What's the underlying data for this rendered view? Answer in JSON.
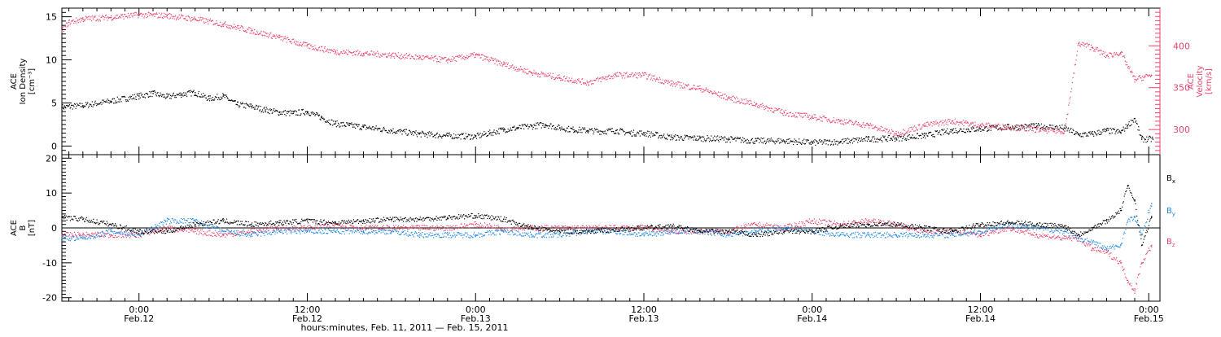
{
  "colors": {
    "black": "#000000",
    "pink": "#e8436a",
    "blue": "#1e88e5",
    "axis": "#000000"
  },
  "footer": {
    "xlabel": "hours:minutes, Feb. 11, 2011 — Feb. 15, 2011"
  },
  "x_ticks": [
    {
      "time": "0:00",
      "date": "Feb.12"
    },
    {
      "time": "12:00",
      "date": "Feb.12"
    },
    {
      "time": "0:00",
      "date": "Feb.13"
    },
    {
      "time": "12:00",
      "date": "Feb.13"
    },
    {
      "time": "0:00",
      "date": "Feb.14"
    },
    {
      "time": "12:00",
      "date": "Feb.14"
    },
    {
      "time": "0:00",
      "date": "Feb.15"
    }
  ],
  "chart_data": [
    {
      "type": "scatter",
      "panel": "top",
      "x_unit": "hours since Feb.11 00:00",
      "xlim": [
        18.5,
        96.8
      ],
      "left_axis": {
        "label_lines": [
          "ACE",
          "Ion Density",
          "[cm⁻³]"
        ],
        "ylim": [
          -1,
          16
        ],
        "ticks": [
          0,
          5,
          10,
          15
        ]
      },
      "right_axis": {
        "label_lines": [
          "ACE",
          "Velocity",
          "[km/s]"
        ],
        "ylim": [
          270,
          445
        ],
        "ticks": [
          300,
          350,
          400
        ]
      },
      "series": [
        {
          "name": "Ion Density",
          "axis": "left",
          "color": "#000000",
          "x": [
            18.5,
            20,
            22,
            24,
            25,
            26,
            27,
            28,
            29,
            30,
            31,
            32,
            33,
            34,
            35,
            36,
            37,
            38,
            39,
            40,
            42,
            44,
            46,
            48,
            49,
            50,
            51,
            52,
            53,
            54,
            55,
            56,
            57,
            58,
            59,
            60,
            62,
            64,
            66,
            68,
            70,
            72,
            74,
            76,
            78,
            80,
            82,
            84,
            86,
            88,
            90,
            91,
            92,
            93,
            94,
            94.5,
            95,
            95.5,
            96.3
          ],
          "y": [
            4.5,
            4.7,
            5.2,
            5.8,
            6.1,
            5.7,
            6.0,
            6.2,
            5.5,
            5.8,
            4.8,
            4.6,
            4.2,
            3.9,
            3.8,
            4.0,
            3.3,
            2.6,
            2.4,
            2.2,
            1.8,
            1.4,
            1.2,
            1.1,
            1.5,
            1.9,
            2.1,
            2.3,
            2.5,
            2.1,
            1.9,
            1.8,
            1.7,
            1.8,
            1.5,
            1.5,
            1.0,
            0.9,
            0.8,
            0.6,
            0.6,
            0.4,
            0.5,
            0.8,
            0.9,
            1.2,
            1.8,
            2.0,
            2.2,
            2.3,
            2.1,
            1.3,
            1.4,
            1.8,
            1.6,
            2.4,
            3.2,
            0.8,
            0.8
          ]
        },
        {
          "name": "Velocity",
          "axis": "right",
          "color": "#e8436a",
          "x": [
            18.5,
            19,
            20,
            22,
            24,
            26,
            28,
            30,
            32,
            34,
            36,
            38,
            40,
            42,
            44,
            46,
            48,
            50,
            52,
            54,
            56,
            58,
            60,
            62,
            64,
            66,
            68,
            70,
            72,
            74,
            76,
            78,
            80,
            82,
            84,
            86,
            88,
            90,
            91,
            92,
            93,
            94,
            95,
            96.2
          ],
          "y": [
            418,
            428,
            432,
            434,
            437,
            436,
            432,
            426,
            418,
            410,
            400,
            393,
            391,
            389,
            386,
            383,
            389,
            378,
            368,
            362,
            356,
            365,
            365,
            355,
            349,
            338,
            330,
            320,
            315,
            310,
            305,
            295,
            305,
            310,
            305,
            303,
            300,
            298,
            403,
            398,
            388,
            392,
            360,
            365
          ]
        }
      ]
    },
    {
      "type": "scatter",
      "panel": "bottom",
      "x_unit": "hours since Feb.11 00:00",
      "xlim": [
        18.5,
        96.8
      ],
      "left_axis": {
        "label_lines": [
          "ACE",
          "B",
          "[nT]"
        ],
        "ylim": [
          -21,
          21
        ],
        "ticks": [
          -20,
          -10,
          0,
          10,
          20
        ]
      },
      "series": [
        {
          "name": "Bx",
          "color": "#000000",
          "x": [
            18.5,
            20,
            22,
            24,
            26,
            28,
            30,
            32,
            34,
            36,
            38,
            40,
            42,
            44,
            46,
            48,
            50,
            52,
            54,
            56,
            58,
            60,
            62,
            64,
            66,
            68,
            70,
            72,
            74,
            76,
            78,
            80,
            82,
            84,
            86,
            88,
            90,
            91,
            92,
            93,
            94,
            94.5,
            95,
            95.5,
            96.2
          ],
          "y": [
            3,
            2.5,
            1,
            -1,
            -1,
            1,
            2,
            1,
            1.5,
            2,
            1.5,
            2,
            2.5,
            2.5,
            3,
            3.5,
            2.5,
            0,
            -1,
            -1,
            -0.5,
            0,
            0.5,
            -1,
            -1,
            -2,
            -1,
            -1,
            0.5,
            1,
            1,
            0,
            -1,
            1,
            1.5,
            1,
            0.5,
            -2,
            0,
            2,
            5,
            12,
            8,
            -5,
            3
          ]
        },
        {
          "name": "By",
          "color": "#1e88e5",
          "x": [
            18.5,
            20,
            22,
            24,
            26,
            28,
            30,
            32,
            34,
            36,
            38,
            40,
            42,
            44,
            46,
            48,
            50,
            52,
            54,
            56,
            58,
            60,
            62,
            64,
            66,
            68,
            70,
            72,
            74,
            76,
            78,
            80,
            82,
            84,
            86,
            88,
            90,
            91,
            92,
            93,
            94,
            94.5,
            95,
            95.5,
            96.2
          ],
          "y": [
            -3,
            -3,
            -1,
            -2,
            2,
            2,
            -1,
            -2,
            -1,
            -1,
            -1,
            -1,
            -1,
            -2,
            -2,
            -2,
            -1,
            -2,
            -2,
            -1,
            -1,
            -2,
            -1,
            -1,
            -2,
            -1,
            0,
            -1,
            -2,
            -2,
            -2,
            -2,
            -2,
            -1,
            1,
            0,
            -1,
            -3,
            -4,
            -6,
            -5,
            2,
            3,
            -2,
            7
          ]
        },
        {
          "name": "Bz",
          "color": "#e8436a",
          "x": [
            18.5,
            20,
            22,
            24,
            26,
            28,
            30,
            32,
            34,
            36,
            38,
            40,
            42,
            44,
            46,
            48,
            50,
            52,
            54,
            56,
            58,
            60,
            62,
            64,
            66,
            68,
            70,
            72,
            74,
            76,
            78,
            80,
            82,
            84,
            86,
            88,
            90,
            91,
            92,
            93,
            94,
            94.5,
            95,
            95.5,
            96.2
          ],
          "y": [
            -2,
            -2,
            -2,
            -2,
            0,
            -1,
            -2,
            -1,
            0,
            0,
            1,
            0,
            0,
            0,
            0,
            1,
            0,
            0,
            0,
            0,
            0,
            0,
            -1,
            -1,
            -1,
            1,
            0,
            2,
            1,
            2,
            1,
            -1,
            -1,
            -2,
            0,
            -2,
            -3,
            -3,
            -6,
            -7,
            -10,
            -15,
            -18,
            -10,
            -5
          ]
        }
      ]
    }
  ],
  "legend": [
    {
      "name": "B",
      "sub": "x",
      "color": "#000000"
    },
    {
      "name": "B",
      "sub": "y",
      "color": "#1e88e5"
    },
    {
      "name": "B",
      "sub": "z",
      "color": "#e8436a"
    }
  ]
}
